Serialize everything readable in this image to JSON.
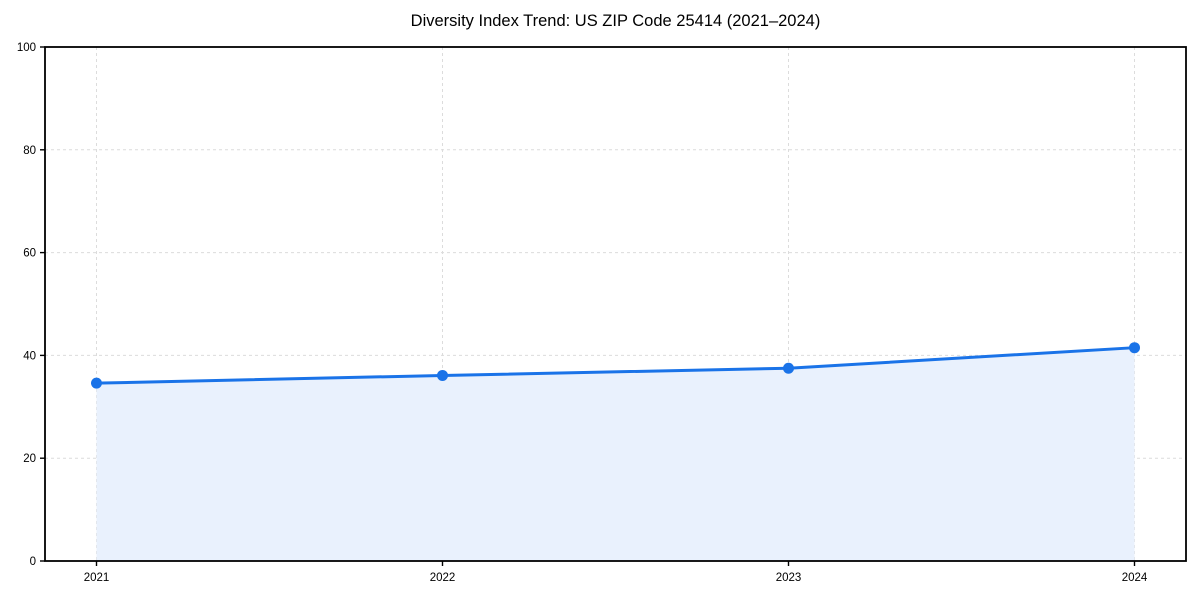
{
  "header": {
    "title": "Diversity Index Trend: US ZIP Code 25414 (2021–2024)"
  },
  "chart_data": {
    "type": "area",
    "title": "Diversity Index Trend: US ZIP Code 25414 (2021–2024)",
    "x": [
      2021,
      2022,
      2023,
      2024
    ],
    "xtick_labels": [
      "2021",
      "2022",
      "2023",
      "2024"
    ],
    "values": [
      34.6,
      36.1,
      37.5,
      41.5
    ],
    "series_name": "Diversity Index",
    "xlabel": "",
    "ylabel": "",
    "ylim": [
      0,
      100
    ],
    "yticks": [
      0,
      20,
      40,
      60,
      80,
      100
    ],
    "ytick_labels": [
      "0",
      "20",
      "40",
      "60",
      "80",
      "100"
    ],
    "grid": true,
    "grid_style": "dashed",
    "legend": false,
    "marker": "circle",
    "colors": {
      "line": "#1a73e8",
      "marker": "#1a73e8",
      "fill": "#e9f1fd",
      "grid": "#dcdcdc",
      "axis": "#000000",
      "tick_label": "#000000",
      "background": "#ffffff"
    }
  }
}
